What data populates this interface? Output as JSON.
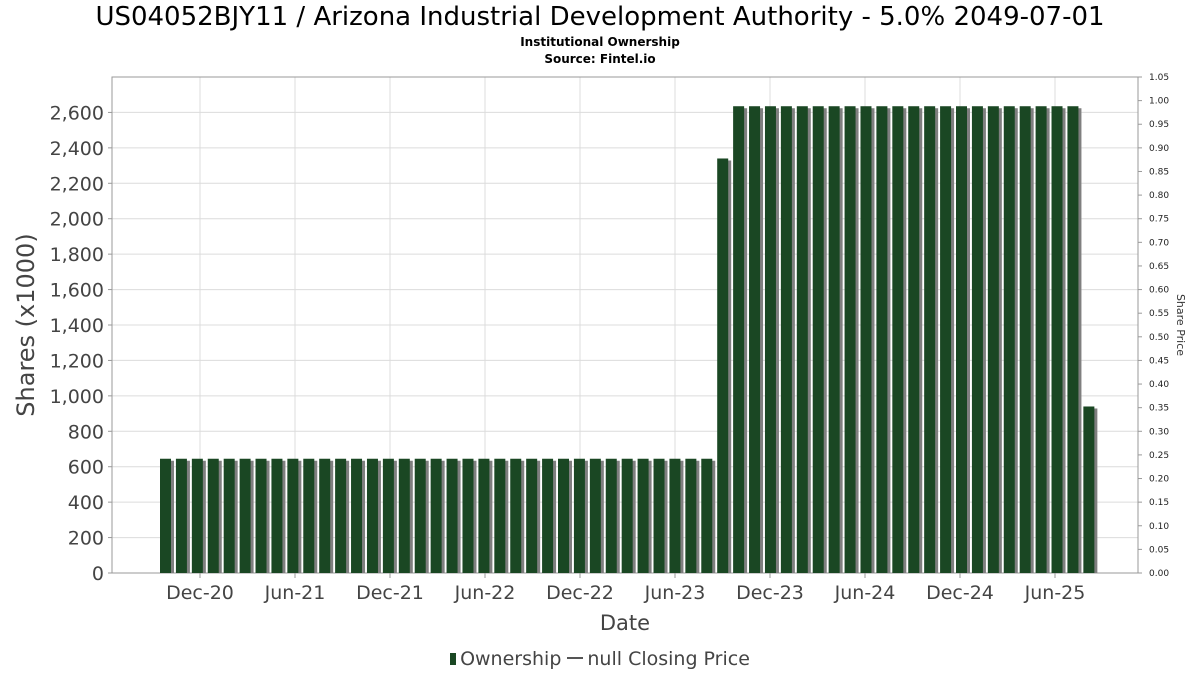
{
  "chart_data": {
    "type": "bar",
    "title": "US04052BJY11 / Arizona Industrial Development Authority - 5.0% 2049-07-01",
    "subtitle": "Institutional Ownership",
    "source": "Source: Fintel.io",
    "xlabel": "Date",
    "ylabel": "Shares (x1000)",
    "y2label": "Share Price",
    "ylim": [
      0,
      2800
    ],
    "y2lim": [
      0,
      1.05
    ],
    "yticks": [
      0,
      200,
      400,
      600,
      800,
      1000,
      1200,
      1400,
      1600,
      1800,
      2000,
      2200,
      2400,
      2600
    ],
    "ytick_labels": [
      "0",
      "200",
      "400",
      "600",
      "800",
      "1,000",
      "1,200",
      "1,400",
      "1,600",
      "1,800",
      "2,000",
      "2,200",
      "2,400",
      "2,600"
    ],
    "y2ticks": [
      "0.00",
      "0.05",
      "0.10",
      "0.15",
      "0.20",
      "0.25",
      "0.30",
      "0.35",
      "0.40",
      "0.45",
      "0.50",
      "0.55",
      "0.60",
      "0.65",
      "0.70",
      "0.75",
      "0.80",
      "0.85",
      "0.90",
      "0.95",
      "1.00",
      "1.05"
    ],
    "xticks": [
      "Dec-20",
      "Jun-21",
      "Dec-21",
      "Jun-22",
      "Dec-22",
      "Jun-23",
      "Dec-23",
      "Jun-24",
      "Dec-24",
      "Jun-25"
    ],
    "grid": true,
    "legend_position": "bottom",
    "colors": {
      "bar": "#1a4723",
      "shadow": "#7f7f7f",
      "grid": "#dcdcdc",
      "axis": "#999999"
    },
    "series": [
      {
        "name": "Ownership",
        "values": [
          645,
          645,
          645,
          645,
          645,
          645,
          645,
          645,
          645,
          645,
          645,
          645,
          645,
          645,
          645,
          645,
          645,
          645,
          645,
          645,
          645,
          645,
          645,
          645,
          645,
          645,
          645,
          645,
          645,
          645,
          645,
          645,
          645,
          645,
          645,
          2340,
          2635,
          2635,
          2635,
          2635,
          2635,
          2635,
          2635,
          2635,
          2635,
          2635,
          2635,
          2635,
          2635,
          2635,
          2635,
          2635,
          2635,
          2635,
          2635,
          2635,
          2635,
          2635,
          940
        ]
      },
      {
        "name": "null Closing Price",
        "values": []
      }
    ]
  }
}
